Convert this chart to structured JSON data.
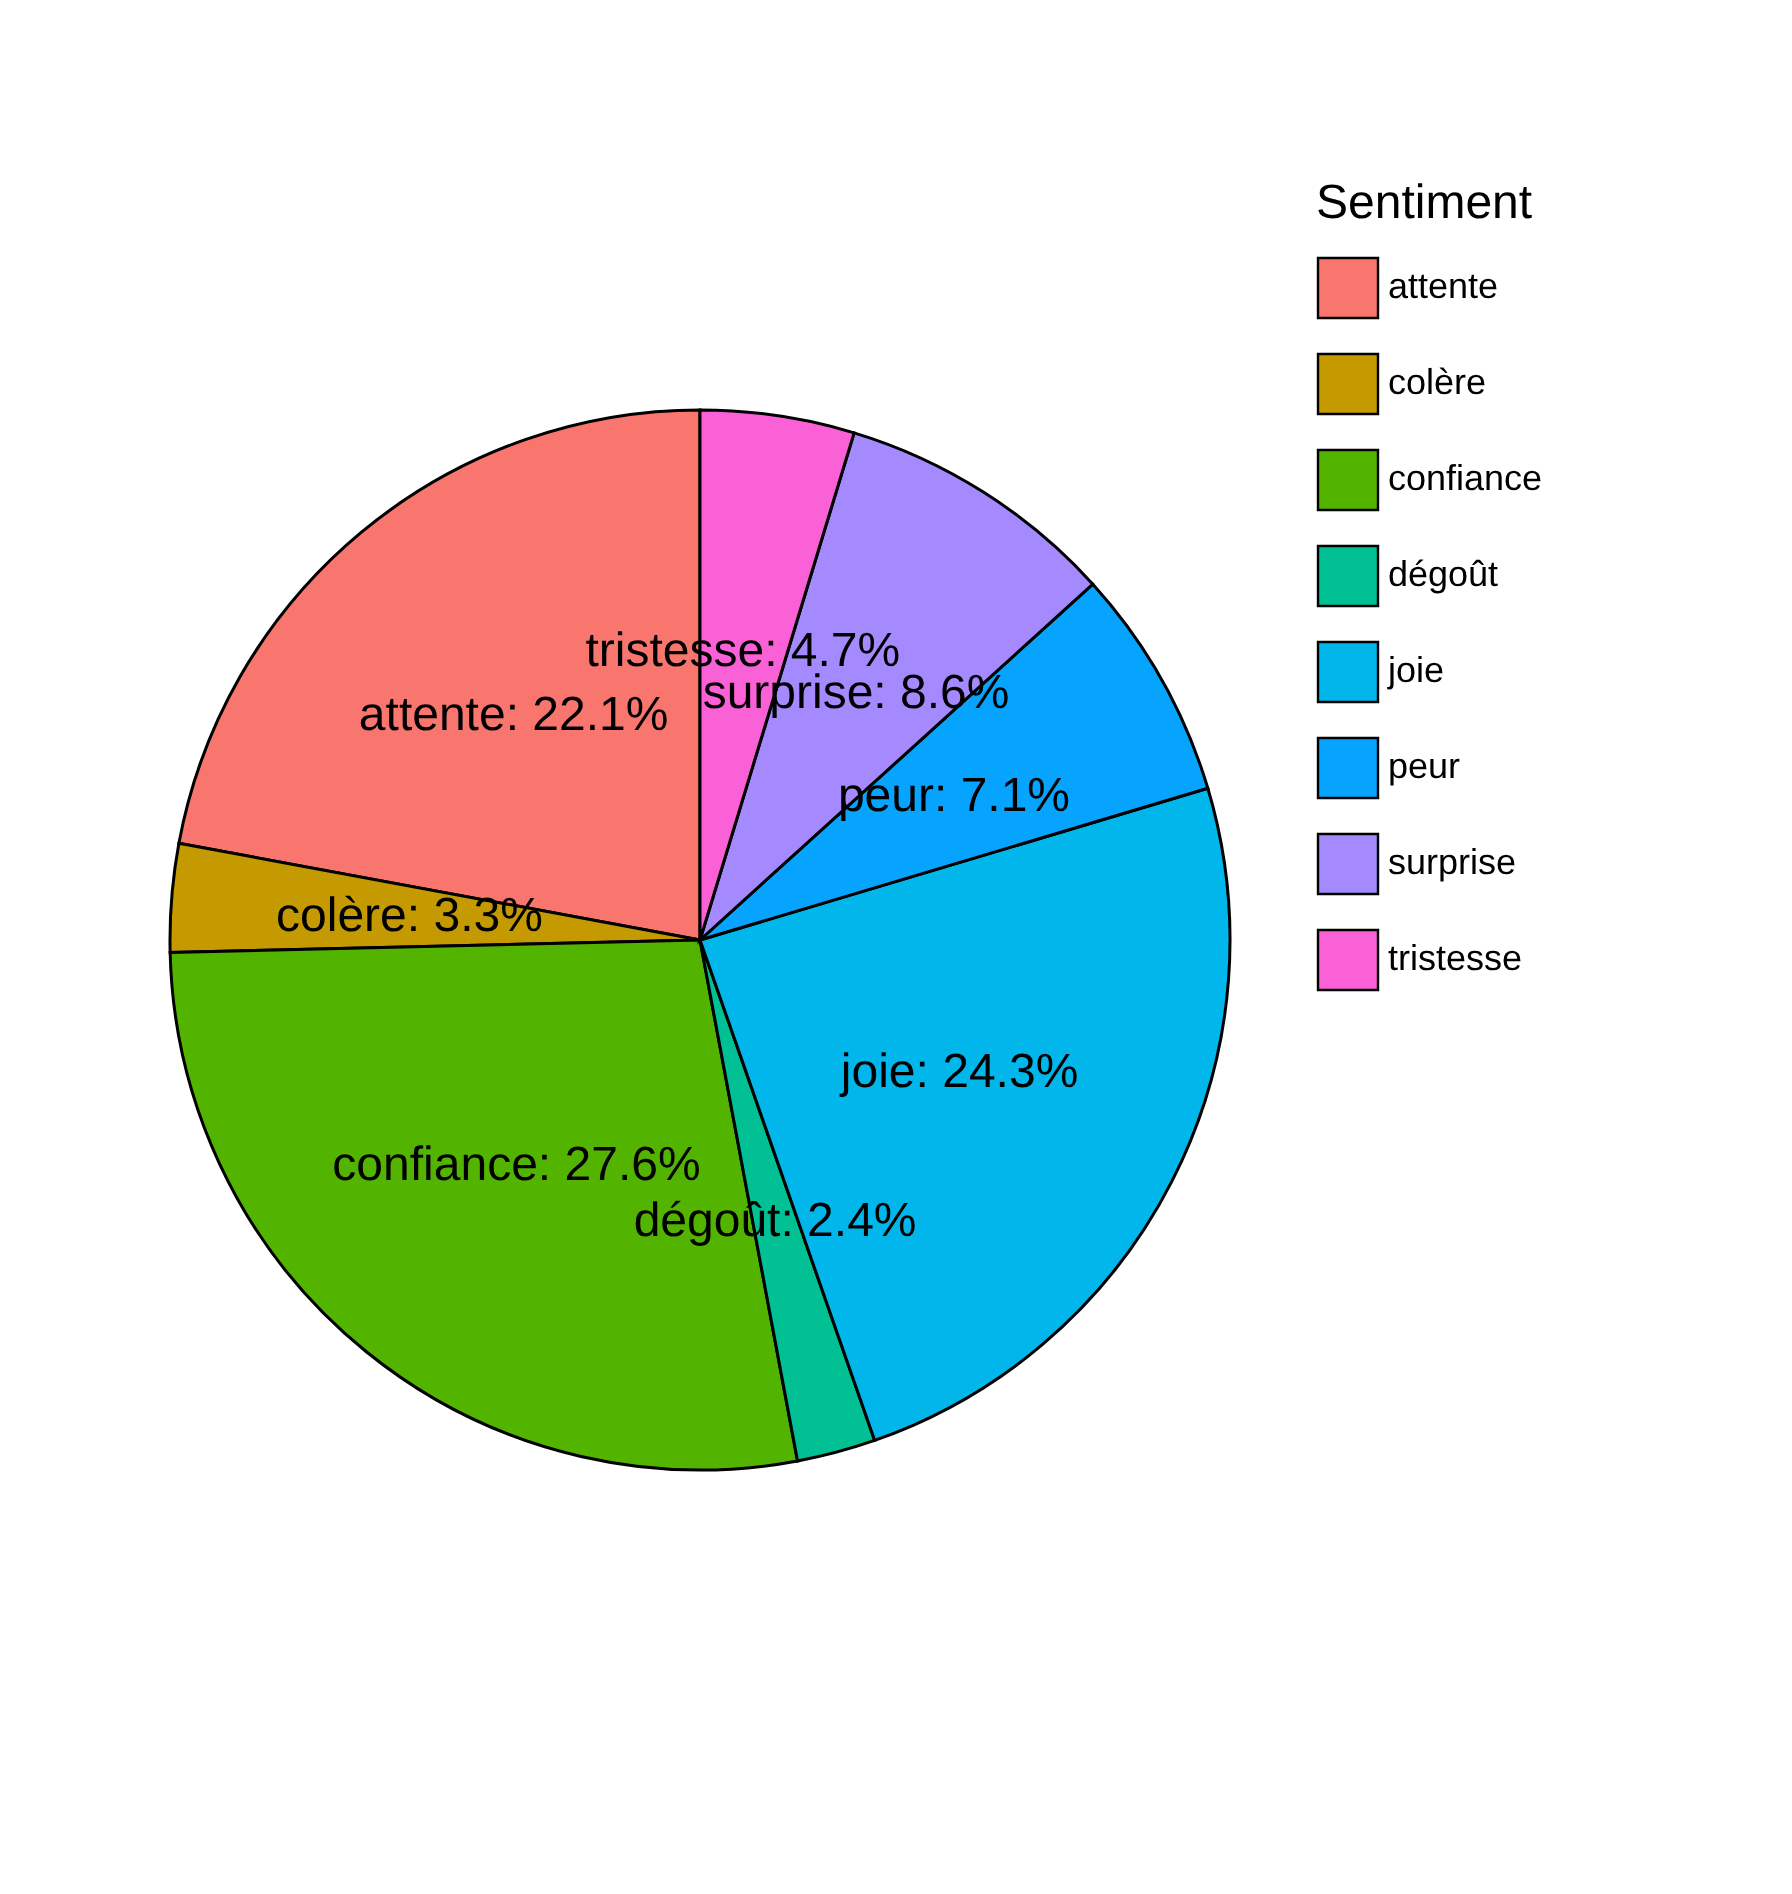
{
  "chart_data": {
    "type": "pie",
    "legend_title": "Sentiment",
    "legend": "right",
    "categories": [
      "attente",
      "colère",
      "confiance",
      "dégoût",
      "joie",
      "peur",
      "surprise",
      "tristesse"
    ],
    "values": [
      22.1,
      3.3,
      27.6,
      2.4,
      24.3,
      7.1,
      8.6,
      4.7
    ],
    "colors": [
      "#f8766d",
      "#c49a00",
      "#53b400",
      "#00c094",
      "#00b6eb",
      "#06a4ff",
      "#a58aff",
      "#fb61d7"
    ],
    "value_labels": [
      "attente: 22.1%",
      "colère: 3.3%",
      "confiance: 27.6%",
      "dégoût: 2.4%",
      "joie: 24.3%",
      "peur: 7.1%",
      "surprise: 8.6%",
      "tristesse: 4.7%"
    ]
  }
}
